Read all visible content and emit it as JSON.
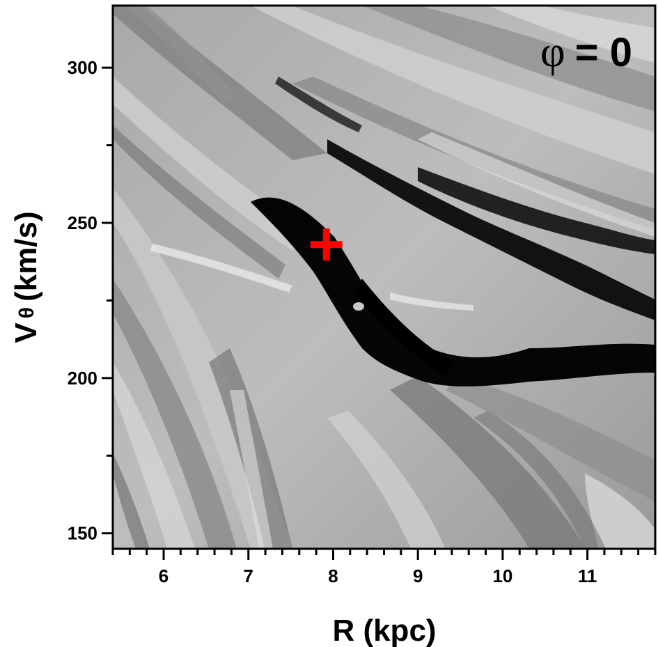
{
  "chart_data": {
    "type": "heatmap",
    "title": "",
    "xlabel": "R (kpc)",
    "ylabel_main": "V",
    "ylabel_sub": "θ",
    "ylabel_unit": "(km/s)",
    "annotation": {
      "symbol": "φ",
      "text": "= 0"
    },
    "xlim": [
      5.4,
      11.8
    ],
    "ylim": [
      145,
      320
    ],
    "x_major_ticks": [
      6,
      7,
      8,
      9,
      10,
      11
    ],
    "x_minor_ticks": [
      5.4,
      5.6,
      5.8,
      6.2,
      6.4,
      6.6,
      6.8,
      7.2,
      7.4,
      7.6,
      7.8,
      8.2,
      8.4,
      8.6,
      8.8,
      9.2,
      9.4,
      9.6,
      9.8,
      10.2,
      10.4,
      10.6,
      10.8,
      11.2,
      11.4,
      11.6,
      11.8
    ],
    "y_major_ticks": [
      150,
      200,
      250,
      300
    ],
    "y_minor_ticks": [
      175,
      225,
      275
    ],
    "marker": {
      "x": 7.92,
      "y": 243,
      "shape": "plus",
      "color": "#ff0000"
    },
    "grid": false,
    "colormap": "grayscale"
  }
}
